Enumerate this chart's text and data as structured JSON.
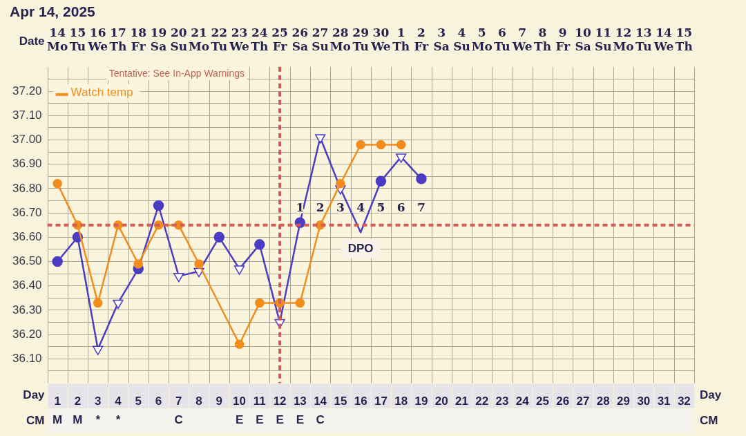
{
  "chart_data": {
    "type": "line",
    "title": "Apr 14, 2025",
    "xlabel": "Day",
    "x2label": "Date",
    "legend": "top left",
    "grid": true,
    "line_style": "solid",
    "x": [
      1,
      2,
      3,
      4,
      5,
      6,
      7,
      8,
      9,
      10,
      11,
      12,
      13,
      14,
      15,
      16,
      17,
      18,
      19
    ],
    "xlim": [
      0.5,
      32.5
    ],
    "xticks": [
      {
        "value": 1,
        "label": "1\nM"
      },
      {
        "value": 2,
        "label": "2\nM"
      },
      {
        "value": 3,
        "label": "3\n*"
      },
      {
        "value": 4,
        "label": "4\n*"
      },
      5,
      6,
      {
        "value": 7,
        "label": "7\nC"
      },
      8,
      9,
      {
        "value": 10,
        "label": "10\nE"
      },
      {
        "value": 11,
        "label": "11\nE"
      },
      {
        "value": 12,
        "label": "12\nE"
      },
      {
        "value": 13,
        "label": "13\nE"
      },
      {
        "value": 14,
        "label": "14\nC"
      },
      15,
      16,
      17,
      18,
      19,
      20,
      21,
      22,
      23,
      24,
      25,
      26,
      27,
      28,
      29,
      30,
      31,
      32
    ],
    "x2lim": [
      "2025-04-13T12:00",
      "2025-05-15T12:00"
    ],
    "x2ticks": [
      {
        "value": "2025-04-14",
        "label": "14\nMo"
      },
      {
        "value": "2025-04-15",
        "label": "15\nTu"
      },
      {
        "value": "2025-04-16",
        "label": "16\nWe"
      },
      {
        "value": "2025-04-17",
        "label": "17\nTh"
      },
      {
        "value": "2025-04-18",
        "label": "18\nFr"
      },
      {
        "value": "2025-04-19",
        "label": "19\nSa"
      },
      {
        "value": "2025-04-20",
        "label": "20\nSu"
      },
      {
        "value": "2025-04-21",
        "label": "21\nMo"
      },
      {
        "value": "2025-04-22",
        "label": "22\nTu"
      },
      {
        "value": "2025-04-23",
        "label": "23\nWe"
      },
      {
        "value": "2025-04-24",
        "label": "24\nTh"
      },
      {
        "value": "2025-04-25",
        "label": "25\nFr"
      },
      {
        "value": "2025-04-26",
        "label": "26\nSa"
      },
      {
        "value": "2025-04-27",
        "label": "27\nSu"
      },
      {
        "value": "2025-04-28",
        "label": "28\nMo"
      },
      {
        "value": "2025-04-29",
        "label": "29\nTu"
      },
      {
        "value": "2025-04-30",
        "label": "30\nWe"
      },
      {
        "value": "2025-05-01",
        "label": "1\nTh"
      },
      {
        "value": "2025-05-02",
        "label": "2\nFr"
      },
      {
        "value": "2025-05-03",
        "label": "3\nSa"
      },
      {
        "value": "2025-05-04",
        "label": "4\nSu"
      },
      {
        "value": "2025-05-05",
        "label": "5\nMo"
      },
      {
        "value": "2025-05-06",
        "label": "6\nTu"
      },
      {
        "value": "2025-05-07",
        "label": "7\nWe"
      },
      {
        "value": "2025-05-08",
        "label": "8\nTh"
      },
      {
        "value": "2025-05-09",
        "label": "9\nFr"
      },
      {
        "value": "2025-05-10",
        "label": "10\nSa"
      },
      {
        "value": "2025-05-11",
        "label": "11\nSu"
      },
      {
        "value": "2025-05-12",
        "label": "12\nMo"
      },
      {
        "value": "2025-05-13",
        "label": "13\nTu"
      },
      {
        "value": "2025-05-14",
        "label": "14\nWe"
      },
      {
        "value": "2025-05-15",
        "label": "15\nTh"
      }
    ],
    "ylim": [
      36.0,
      37.3
    ],
    "yticks": [
      {
        "value": 36.05,
        "label": null
      },
      "36.10",
      {
        "value": 36.15,
        "label": null
      },
      {
        "value": 36.2,
        "label": "36.20"
      },
      {
        "value": 36.25,
        "label": null
      },
      {
        "value": 36.3,
        "label": "36.30"
      },
      {
        "value": 36.35,
        "label": null
      },
      {
        "value": 36.4,
        "label": "36.40"
      },
      {
        "value": 36.45,
        "label": null
      },
      {
        "value": 36.5,
        "label": "36.50"
      },
      {
        "value": 36.55,
        "label": null
      },
      {
        "value": 36.6,
        "label": "36.60"
      },
      {
        "value": 36.7,
        "label": "36.70"
      },
      {
        "value": 36.75,
        "label": null
      },
      {
        "value": 36.8,
        "label": "36.80"
      },
      {
        "value": 36.85,
        "label": null
      },
      {
        "value": 36.9,
        "label": "36.90"
      },
      {
        "value": 36.95,
        "label": null
      },
      {
        "value": 37.0,
        "label": "37.00"
      },
      {
        "value": 37.05,
        "label": null
      },
      {
        "value": 37.1,
        "label": "37.10"
      },
      {
        "value": 37.15,
        "label": null
      },
      {
        "value": 37.2,
        "label": "37.20"
      },
      {
        "value": 37.25,
        "label": null
      }
    ],
    "series": [
      {
        "type": "line",
        "marker": "none",
        "color": "#4b3cc4",
        "values": [
          36.5,
          36.6,
          36.14,
          36.33,
          36.47,
          36.73,
          36.44,
          36.46,
          36.6,
          36.47,
          36.57,
          36.25,
          36.66,
          37.01,
          36.8,
          36.62,
          36.83,
          36.93,
          36.84
        ]
      },
      {
        "type": "scatter",
        "marker": "circle",
        "color": "#4b3cc4",
        "values": [
          36.5,
          36.6,
          null,
          null,
          36.47,
          36.73,
          null,
          null,
          36.6,
          null,
          36.57,
          null,
          36.66,
          null,
          null,
          null,
          36.83,
          null,
          36.84
        ]
      },
      {
        "type": "scatter",
        "marker": "triangle",
        "color": "#4b3cc4",
        "values": [
          null,
          null,
          36.14,
          36.33,
          null,
          null,
          36.44,
          36.46,
          null,
          36.47,
          null,
          36.25,
          null,
          37.01,
          36.8,
          null,
          null,
          36.93,
          null
        ]
      },
      {
        "type": "line",
        "name": "Watch temp",
        "marker": "circle",
        "color": "#f28c1c",
        "values": [
          36.82,
          36.65,
          36.33,
          36.65,
          36.49,
          36.65,
          36.65,
          36.49,
          null,
          36.16,
          36.33,
          36.33,
          36.33,
          36.65,
          36.82,
          36.98,
          36.98,
          36.98,
          null
        ]
      }
    ],
    "ref_lines": [
      {
        "axis": "y",
        "value": 36.65,
        "color": "#d05a5a",
        "line_style": "dashed"
      },
      {
        "axis": "x",
        "value": 12,
        "color": "#d05a5a",
        "line_style": "dashed"
      }
    ],
    "annotations": [
      "Tentative: See In-App Warnings",
      "CM",
      "1",
      "2",
      "3",
      "4",
      "5",
      "6",
      "7",
      "DPO"
    ]
  }
}
